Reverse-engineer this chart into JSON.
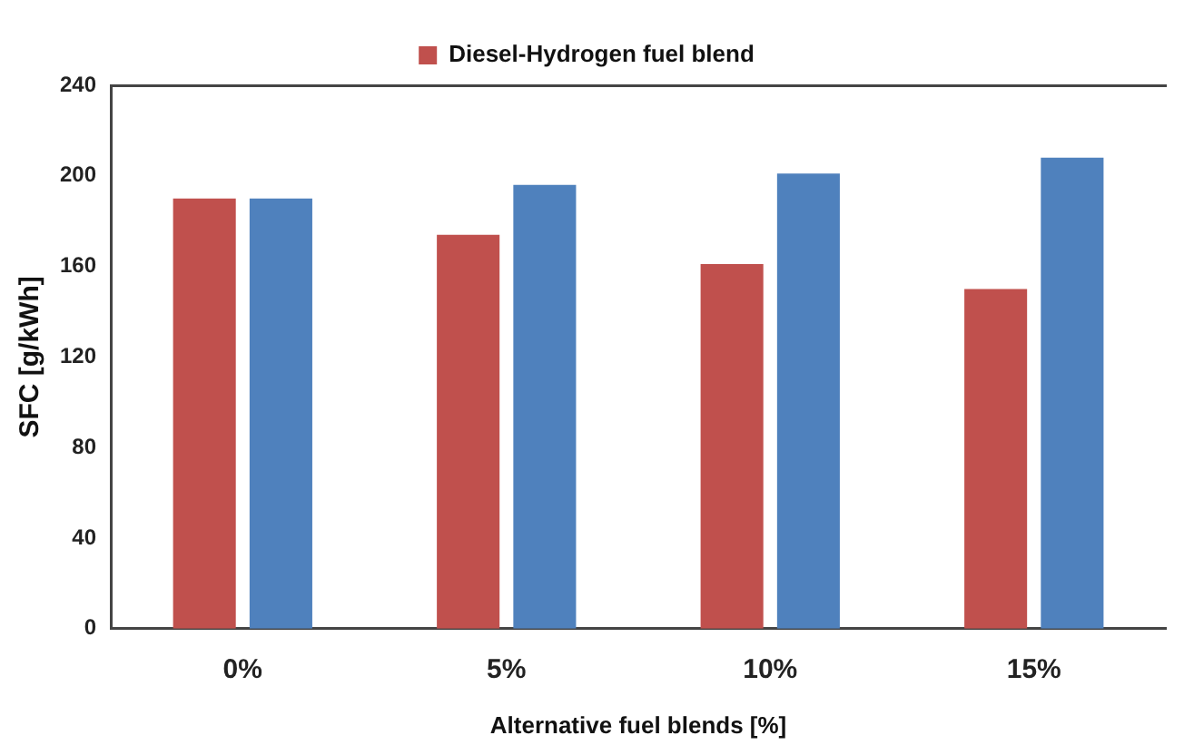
{
  "chart_data": {
    "type": "bar",
    "xlabel": "Alternative fuel blends [%]",
    "ylabel": "SFC [g/kWh]",
    "categories": [
      "0%",
      "5%",
      "10%",
      "15%"
    ],
    "series": [
      {
        "name": "Diesel-Hydrogen fuel blend",
        "color": "#c0504d",
        "values": [
          190,
          174,
          161,
          150
        ]
      },
      {
        "color": "#4f81bd",
        "values": [
          190,
          196,
          201,
          208
        ]
      }
    ],
    "ylim": [
      0,
      240
    ],
    "yticks": [
      0,
      40,
      80,
      120,
      160,
      200,
      240
    ],
    "grid": false,
    "legend": "top"
  }
}
